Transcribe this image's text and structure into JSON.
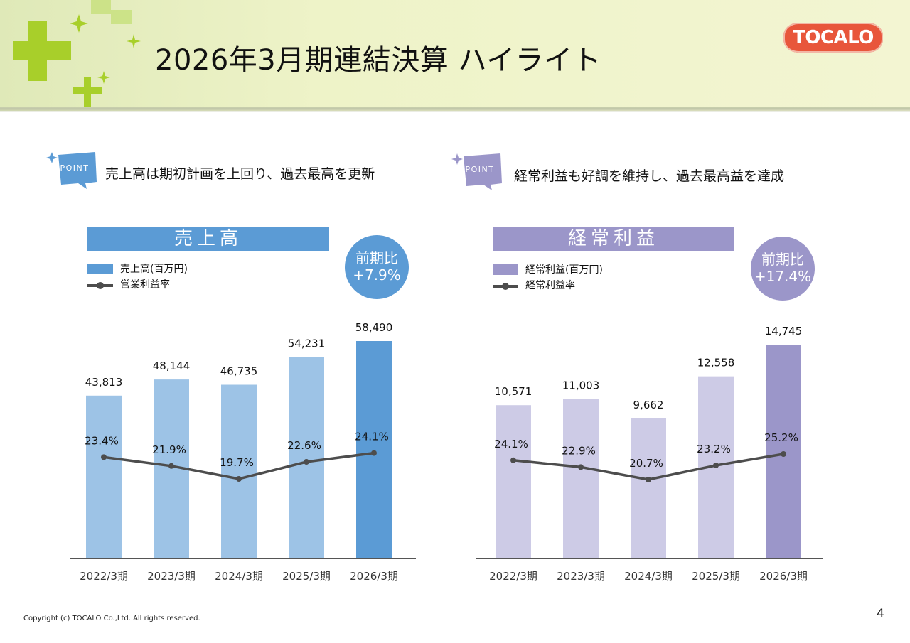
{
  "header": {
    "title": "2026年3月期連結決算 ハイライト",
    "logo_text": "TOCALO"
  },
  "points": [
    {
      "badge": "POINT",
      "text": "売上高は期初計画を上回り、過去最高を更新",
      "color": "#5b9bd5"
    },
    {
      "badge": "POINT",
      "text": "経常利益も好調を維持し、過去最高益を達成",
      "color": "#9b96c9"
    }
  ],
  "chart_data": [
    {
      "type": "bar",
      "title": "売上高",
      "growth_label": "前期比",
      "growth_value": "+7.9%",
      "categories": [
        "2022/3期",
        "2023/3期",
        "2024/3期",
        "2025/3期",
        "2026/3期"
      ],
      "series": [
        {
          "name": "売上高(百万円)",
          "type": "bar",
          "values": [
            43813,
            48144,
            46735,
            54231,
            58490
          ],
          "labels": [
            "43,813",
            "48,144",
            "46,735",
            "54,231",
            "58,490"
          ]
        },
        {
          "name": "営業利益率",
          "type": "line",
          "values": [
            23.4,
            21.9,
            19.7,
            22.6,
            24.1
          ],
          "labels": [
            "23.4%",
            "21.9%",
            "19.7%",
            "22.6%",
            "24.1%"
          ]
        }
      ],
      "colors": {
        "bar": "#9dc3e6",
        "bar_highlight": "#5b9bd5",
        "line": "#4d4d4d",
        "banner": "#5b9bd5",
        "circle": "#5b9bd5"
      },
      "highlight_index": 4
    },
    {
      "type": "bar",
      "title": "経常利益",
      "growth_label": "前期比",
      "growth_value": "+17.4%",
      "categories": [
        "2022/3期",
        "2023/3期",
        "2024/3期",
        "2025/3期",
        "2026/3期"
      ],
      "series": [
        {
          "name": "経常利益(百万円)",
          "type": "bar",
          "values": [
            10571,
            11003,
            9662,
            12558,
            14745
          ],
          "labels": [
            "10,571",
            "11,003",
            "9,662",
            "12,558",
            "14,745"
          ]
        },
        {
          "name": "経常利益率",
          "type": "line",
          "values": [
            24.1,
            22.9,
            20.7,
            23.2,
            25.2
          ],
          "labels": [
            "24.1%",
            "22.9%",
            "20.7%",
            "23.2%",
            "25.2%"
          ]
        }
      ],
      "colors": {
        "bar": "#cdcbe6",
        "bar_highlight": "#9b96c9",
        "line": "#4d4d4d",
        "banner": "#9b96c9",
        "circle": "#9b96c9"
      },
      "highlight_index": 4
    }
  ],
  "footer": {
    "copyright": "Copyright (c) TOCALO Co.,Ltd. All rights reserved.",
    "page_number": "4"
  }
}
